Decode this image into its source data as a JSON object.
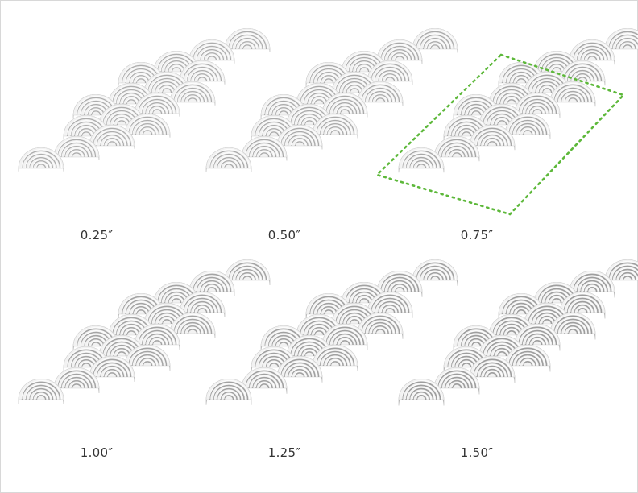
{
  "colors": {
    "background": "#ffffff",
    "tile_face": "#f2f2f2",
    "tile_shadow": "#8f8f8f",
    "groove": "#7a7a7a",
    "label": "#333333",
    "selection": "#5db83a"
  },
  "tiles": [
    {
      "label": "0.25″",
      "depth": 0.25,
      "selected": false
    },
    {
      "label": "0.50″",
      "depth": 0.5,
      "selected": false
    },
    {
      "label": "0.75″",
      "depth": 0.75,
      "selected": true
    },
    {
      "label": "1.00″",
      "depth": 1.0,
      "selected": false
    },
    {
      "label": "1.25″",
      "depth": 1.25,
      "selected": false
    },
    {
      "label": "1.50″",
      "depth": 1.5,
      "selected": false
    }
  ]
}
